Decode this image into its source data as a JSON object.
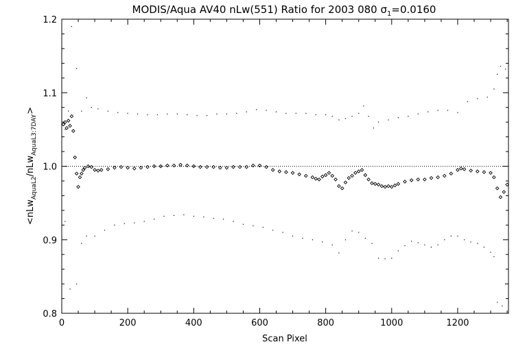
{
  "chart_data": {
    "type": "scatter",
    "title": "MODIS/Aqua AV40 nLw(551) Ratio for 2003 080 σ₁=0.0160",
    "title_parts": {
      "main": "MODIS/Aqua AV40 nLw(551) Ratio for 2003 080 σ",
      "sub": "1",
      "tail": "=0.0160"
    },
    "xlabel": "Scan Pixel",
    "ylabel_parts": {
      "a": "<nLw",
      "a_sub": "AquaL2",
      "b": "/nLw",
      "b_sub": "AquaL3:7DAY",
      "c": ">"
    },
    "xlim": [
      0,
      1354
    ],
    "ylim": [
      0.8,
      1.2
    ],
    "x_ticks": [
      {
        "value": 0,
        "label": "0"
      },
      {
        "value": 200,
        "label": "200"
      },
      {
        "value": 400,
        "label": "400"
      },
      {
        "value": 600,
        "label": "600"
      },
      {
        "value": 800,
        "label": "800"
      },
      {
        "value": 1000,
        "label": "1000"
      },
      {
        "value": 1200,
        "label": "1200"
      }
    ],
    "y_ticks": [
      {
        "value": 0.8,
        "label": "0.8"
      },
      {
        "value": 0.9,
        "label": "0.9"
      },
      {
        "value": 1.0,
        "label": "1.0"
      },
      {
        "value": 1.1,
        "label": "1.1"
      },
      {
        "value": 1.2,
        "label": "1.2"
      }
    ],
    "reference_line": 1.0,
    "grid": false,
    "series": [
      {
        "role": "mean ratio",
        "marker": "diamond",
        "points": [
          [
            5,
            1.057
          ],
          [
            10,
            1.06
          ],
          [
            15,
            1.052
          ],
          [
            20,
            1.062
          ],
          [
            25,
            1.055
          ],
          [
            30,
            1.068
          ],
          [
            35,
            1.048
          ],
          [
            40,
            1.012
          ],
          [
            45,
            0.99
          ],
          [
            50,
            0.972
          ],
          [
            55,
            0.985
          ],
          [
            60,
            0.99
          ],
          [
            65,
            0.995
          ],
          [
            70,
            0.998
          ],
          [
            80,
            1.0
          ],
          [
            90,
            0.999
          ],
          [
            100,
            0.995
          ],
          [
            110,
            0.994
          ],
          [
            120,
            0.995
          ],
          [
            140,
            0.996
          ],
          [
            160,
            0.998
          ],
          [
            180,
            0.999
          ],
          [
            200,
            0.998
          ],
          [
            220,
            0.997
          ],
          [
            240,
            0.998
          ],
          [
            260,
            0.999
          ],
          [
            280,
            1.0
          ],
          [
            300,
            1.0
          ],
          [
            320,
            1.001
          ],
          [
            340,
            1.001
          ],
          [
            360,
            1.002
          ],
          [
            380,
            1.001
          ],
          [
            400,
            1.0
          ],
          [
            420,
            0.999
          ],
          [
            440,
            0.999
          ],
          [
            460,
            0.999
          ],
          [
            480,
            0.998
          ],
          [
            500,
            0.998
          ],
          [
            520,
            0.999
          ],
          [
            540,
            0.999
          ],
          [
            560,
            0.999
          ],
          [
            580,
            1.001
          ],
          [
            600,
            1.001
          ],
          [
            620,
            0.999
          ],
          [
            640,
            0.995
          ],
          [
            660,
            0.993
          ],
          [
            680,
            0.992
          ],
          [
            700,
            0.991
          ],
          [
            720,
            0.989
          ],
          [
            740,
            0.987
          ],
          [
            760,
            0.985
          ],
          [
            770,
            0.983
          ],
          [
            780,
            0.982
          ],
          [
            790,
            0.986
          ],
          [
            800,
            0.988
          ],
          [
            810,
            0.991
          ],
          [
            820,
            0.987
          ],
          [
            830,
            0.982
          ],
          [
            840,
            0.973
          ],
          [
            850,
            0.97
          ],
          [
            860,
            0.978
          ],
          [
            870,
            0.984
          ],
          [
            880,
            0.987
          ],
          [
            890,
            0.991
          ],
          [
            900,
            0.993
          ],
          [
            910,
            0.995
          ],
          [
            920,
            0.988
          ],
          [
            930,
            0.982
          ],
          [
            940,
            0.977
          ],
          [
            950,
            0.976
          ],
          [
            960,
            0.975
          ],
          [
            970,
            0.973
          ],
          [
            980,
            0.972
          ],
          [
            990,
            0.973
          ],
          [
            1000,
            0.972
          ],
          [
            1010,
            0.974
          ],
          [
            1020,
            0.976
          ],
          [
            1040,
            0.979
          ],
          [
            1060,
            0.981
          ],
          [
            1080,
            0.982
          ],
          [
            1100,
            0.982
          ],
          [
            1120,
            0.984
          ],
          [
            1140,
            0.985
          ],
          [
            1160,
            0.987
          ],
          [
            1180,
            0.99
          ],
          [
            1200,
            0.995
          ],
          [
            1210,
            0.997
          ],
          [
            1220,
            0.996
          ],
          [
            1240,
            0.994
          ],
          [
            1260,
            0.993
          ],
          [
            1280,
            0.992
          ],
          [
            1300,
            0.991
          ],
          [
            1310,
            0.985
          ],
          [
            1320,
            0.97
          ],
          [
            1330,
            0.958
          ],
          [
            1340,
            0.965
          ],
          [
            1350,
            0.975
          ]
        ]
      },
      {
        "role": "upper envelope",
        "marker": "dot",
        "points": [
          [
            10,
            1.05
          ],
          [
            20,
            1.075
          ],
          [
            30,
            1.19
          ],
          [
            45,
            1.133
          ],
          [
            60,
            1.075
          ],
          [
            75,
            1.093
          ],
          [
            90,
            1.08
          ],
          [
            110,
            1.078
          ],
          [
            140,
            1.075
          ],
          [
            170,
            1.073
          ],
          [
            200,
            1.072
          ],
          [
            230,
            1.071
          ],
          [
            260,
            1.07
          ],
          [
            290,
            1.07
          ],
          [
            320,
            1.071
          ],
          [
            350,
            1.071
          ],
          [
            380,
            1.07
          ],
          [
            410,
            1.069
          ],
          [
            440,
            1.069
          ],
          [
            470,
            1.071
          ],
          [
            500,
            1.071
          ],
          [
            530,
            1.072
          ],
          [
            560,
            1.074
          ],
          [
            590,
            1.077
          ],
          [
            620,
            1.076
          ],
          [
            650,
            1.074
          ],
          [
            680,
            1.072
          ],
          [
            710,
            1.072
          ],
          [
            740,
            1.072
          ],
          [
            770,
            1.07
          ],
          [
            800,
            1.07
          ],
          [
            820,
            1.068
          ],
          [
            840,
            1.063
          ],
          [
            860,
            1.065
          ],
          [
            880,
            1.068
          ],
          [
            900,
            1.072
          ],
          [
            915,
            1.082
          ],
          [
            930,
            1.068
          ],
          [
            945,
            1.052
          ],
          [
            960,
            1.06
          ],
          [
            990,
            1.063
          ],
          [
            1020,
            1.066
          ],
          [
            1050,
            1.068
          ],
          [
            1080,
            1.071
          ],
          [
            1110,
            1.074
          ],
          [
            1140,
            1.076
          ],
          [
            1170,
            1.076
          ],
          [
            1200,
            1.073
          ],
          [
            1230,
            1.088
          ],
          [
            1260,
            1.092
          ],
          [
            1290,
            1.094
          ],
          [
            1310,
            1.105
          ],
          [
            1320,
            1.125
          ],
          [
            1330,
            1.136
          ],
          [
            1345,
            1.132
          ]
        ]
      },
      {
        "role": "lower envelope",
        "marker": "dot",
        "points": [
          [
            10,
            0.925
          ],
          [
            25,
            0.833
          ],
          [
            45,
            0.84
          ],
          [
            60,
            0.895
          ],
          [
            75,
            0.905
          ],
          [
            100,
            0.905
          ],
          [
            130,
            0.913
          ],
          [
            160,
            0.92
          ],
          [
            190,
            0.922
          ],
          [
            220,
            0.923
          ],
          [
            250,
            0.925
          ],
          [
            280,
            0.928
          ],
          [
            310,
            0.932
          ],
          [
            340,
            0.933
          ],
          [
            370,
            0.934
          ],
          [
            400,
            0.932
          ],
          [
            430,
            0.931
          ],
          [
            460,
            0.929
          ],
          [
            490,
            0.928
          ],
          [
            520,
            0.925
          ],
          [
            550,
            0.921
          ],
          [
            580,
            0.919
          ],
          [
            610,
            0.917
          ],
          [
            640,
            0.913
          ],
          [
            670,
            0.91
          ],
          [
            700,
            0.905
          ],
          [
            730,
            0.902
          ],
          [
            760,
            0.9
          ],
          [
            790,
            0.897
          ],
          [
            820,
            0.893
          ],
          [
            840,
            0.882
          ],
          [
            860,
            0.9
          ],
          [
            880,
            0.912
          ],
          [
            900,
            0.91
          ],
          [
            920,
            0.902
          ],
          [
            940,
            0.895
          ],
          [
            960,
            0.875
          ],
          [
            980,
            0.874
          ],
          [
            1000,
            0.875
          ],
          [
            1020,
            0.885
          ],
          [
            1040,
            0.892
          ],
          [
            1060,
            0.898
          ],
          [
            1080,
            0.896
          ],
          [
            1100,
            0.893
          ],
          [
            1120,
            0.89
          ],
          [
            1140,
            0.893
          ],
          [
            1160,
            0.9
          ],
          [
            1180,
            0.905
          ],
          [
            1200,
            0.905
          ],
          [
            1220,
            0.9
          ],
          [
            1240,
            0.897
          ],
          [
            1260,
            0.895
          ],
          [
            1280,
            0.89
          ],
          [
            1300,
            0.883
          ],
          [
            1310,
            0.877
          ],
          [
            1320,
            0.815
          ],
          [
            1335,
            0.81
          ],
          [
            1345,
            0.84
          ]
        ]
      }
    ]
  }
}
